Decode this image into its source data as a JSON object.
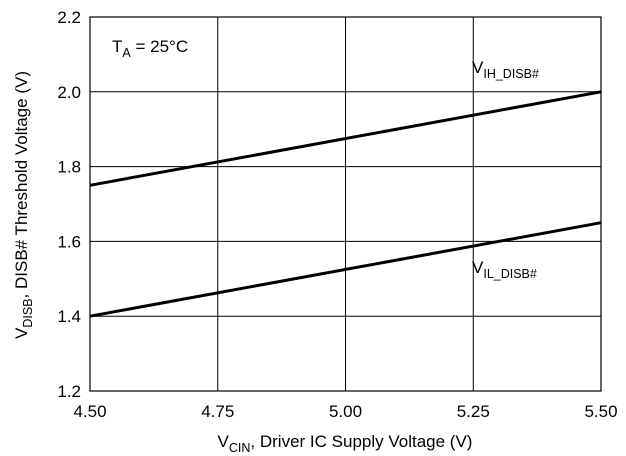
{
  "chart_data": {
    "type": "line",
    "xlabel": {
      "main": "V",
      "sub": "CIN",
      "rest": ", Driver IC Supply Voltage (V)"
    },
    "ylabel": {
      "main": "V",
      "sub": "DISB",
      "rest": ", DISB# Threshold Voltage (V)"
    },
    "xlim": [
      4.5,
      5.5
    ],
    "ylim": [
      1.2,
      2.2
    ],
    "x_ticks": [
      "4.50",
      "4.75",
      "5.00",
      "5.25",
      "5.50"
    ],
    "y_ticks": [
      "1.2",
      "1.4",
      "1.6",
      "1.8",
      "2.0",
      "2.2"
    ],
    "x_tick_values": [
      4.5,
      4.75,
      5.0,
      5.25,
      5.5
    ],
    "y_tick_values": [
      1.2,
      1.4,
      1.6,
      1.8,
      2.0,
      2.2
    ],
    "grid": true,
    "annotation": {
      "main": "T",
      "sub": "A",
      "rest": " = 25°C"
    },
    "series": [
      {
        "name": {
          "main": "V",
          "sub": "IH_DISB#"
        },
        "x": [
          4.5,
          5.5
        ],
        "y": [
          1.75,
          2.0
        ]
      },
      {
        "name": {
          "main": "V",
          "sub": "IL_DISB#"
        },
        "x": [
          4.5,
          5.5
        ],
        "y": [
          1.4,
          1.65
        ]
      }
    ],
    "line_color": "#000000",
    "grid_color": "#000000"
  }
}
